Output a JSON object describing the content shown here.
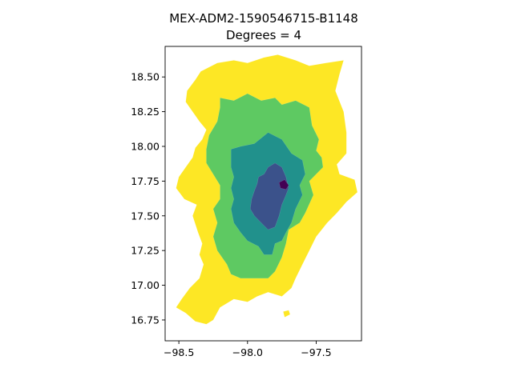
{
  "chart_data": {
    "type": "choropleth",
    "title_line1": "MEX-ADM2-1590546715-B1148",
    "title_line2": "Degrees = 4",
    "xlim": [
      -98.6,
      -97.17
    ],
    "ylim": [
      16.6,
      18.72
    ],
    "x_ticks": [
      {
        "value": -98.5,
        "label": "−98.5"
      },
      {
        "value": -98.0,
        "label": "−98.0"
      },
      {
        "value": -97.5,
        "label": "−97.5"
      }
    ],
    "y_ticks": [
      {
        "value": 16.75,
        "label": "16.75"
      },
      {
        "value": 17.0,
        "label": "17.00"
      },
      {
        "value": 17.25,
        "label": "17.25"
      },
      {
        "value": 17.5,
        "label": "17.50"
      },
      {
        "value": 17.75,
        "label": "17.75"
      },
      {
        "value": 18.0,
        "label": "18.00"
      },
      {
        "value": 18.25,
        "label": "18.25"
      },
      {
        "value": 18.5,
        "label": "18.50"
      }
    ],
    "degree_colors": {
      "0": "#440154",
      "1": "#3b528b",
      "2": "#21918c",
      "3": "#5ec962",
      "4": "#fde725"
    },
    "regions": [
      {
        "degree": 4,
        "poly": [
          [
            -98.3,
            18.56
          ],
          [
            -98.22,
            18.6
          ],
          [
            -98.1,
            18.62
          ],
          [
            -98.0,
            18.6
          ],
          [
            -97.88,
            18.64
          ],
          [
            -97.78,
            18.66
          ],
          [
            -97.65,
            18.62
          ],
          [
            -97.55,
            18.58
          ],
          [
            -97.43,
            18.6
          ],
          [
            -97.3,
            18.62
          ],
          [
            -97.33,
            18.52
          ],
          [
            -97.36,
            18.4
          ],
          [
            -97.3,
            18.25
          ],
          [
            -97.28,
            18.1
          ],
          [
            -97.28,
            17.95
          ],
          [
            -97.35,
            17.87
          ],
          [
            -97.33,
            17.8
          ],
          [
            -97.22,
            17.76
          ],
          [
            -97.2,
            17.67
          ],
          [
            -97.28,
            17.6
          ],
          [
            -97.35,
            17.52
          ],
          [
            -97.42,
            17.45
          ],
          [
            -97.5,
            17.35
          ],
          [
            -97.55,
            17.25
          ],
          [
            -97.6,
            17.15
          ],
          [
            -97.65,
            17.05
          ],
          [
            -97.68,
            16.98
          ],
          [
            -97.75,
            16.92
          ],
          [
            -97.85,
            16.95
          ],
          [
            -97.93,
            16.92
          ],
          [
            -98.0,
            16.88
          ],
          [
            -98.1,
            16.9
          ],
          [
            -98.2,
            16.84
          ],
          [
            -98.25,
            16.75
          ],
          [
            -98.3,
            16.72
          ],
          [
            -98.38,
            16.74
          ],
          [
            -98.45,
            16.8
          ],
          [
            -98.52,
            16.84
          ],
          [
            -98.48,
            16.9
          ],
          [
            -98.42,
            16.98
          ],
          [
            -98.35,
            17.05
          ],
          [
            -98.32,
            17.15
          ],
          [
            -98.35,
            17.22
          ],
          [
            -98.33,
            17.3
          ],
          [
            -98.36,
            17.38
          ],
          [
            -98.4,
            17.5
          ],
          [
            -98.37,
            17.58
          ],
          [
            -98.46,
            17.62
          ],
          [
            -98.52,
            17.7
          ],
          [
            -98.5,
            17.78
          ],
          [
            -98.45,
            17.85
          ],
          [
            -98.4,
            17.92
          ],
          [
            -98.38,
            17.99
          ],
          [
            -98.33,
            18.05
          ],
          [
            -98.3,
            18.12
          ],
          [
            -98.35,
            18.18
          ],
          [
            -98.4,
            18.25
          ],
          [
            -98.45,
            18.32
          ],
          [
            -98.44,
            18.4
          ],
          [
            -98.38,
            18.48
          ],
          [
            -98.34,
            18.54
          ]
        ]
      },
      {
        "degree": 4,
        "poly": [
          [
            -97.74,
            16.81
          ],
          [
            -97.7,
            16.82
          ],
          [
            -97.69,
            16.79
          ],
          [
            -97.73,
            16.77
          ]
        ]
      },
      {
        "degree": 3,
        "poly": [
          [
            -98.2,
            18.35
          ],
          [
            -98.1,
            18.33
          ],
          [
            -98.0,
            18.38
          ],
          [
            -97.9,
            18.33
          ],
          [
            -97.8,
            18.35
          ],
          [
            -97.75,
            18.3
          ],
          [
            -97.65,
            18.33
          ],
          [
            -97.55,
            18.28
          ],
          [
            -97.53,
            18.15
          ],
          [
            -97.48,
            18.05
          ],
          [
            -97.5,
            17.97
          ],
          [
            -97.46,
            17.92
          ],
          [
            -97.45,
            17.85
          ],
          [
            -97.55,
            17.75
          ],
          [
            -97.52,
            17.65
          ],
          [
            -97.58,
            17.52
          ],
          [
            -97.62,
            17.45
          ],
          [
            -97.7,
            17.4
          ],
          [
            -97.72,
            17.3
          ],
          [
            -97.75,
            17.2
          ],
          [
            -97.8,
            17.1
          ],
          [
            -97.85,
            17.05
          ],
          [
            -97.95,
            17.05
          ],
          [
            -98.05,
            17.05
          ],
          [
            -98.12,
            17.08
          ],
          [
            -98.15,
            17.15
          ],
          [
            -98.22,
            17.25
          ],
          [
            -98.25,
            17.35
          ],
          [
            -98.22,
            17.45
          ],
          [
            -98.25,
            17.55
          ],
          [
            -98.2,
            17.62
          ],
          [
            -98.2,
            17.72
          ],
          [
            -98.25,
            17.8
          ],
          [
            -98.3,
            17.88
          ],
          [
            -98.3,
            17.98
          ],
          [
            -98.28,
            18.08
          ],
          [
            -98.22,
            18.18
          ],
          [
            -98.2,
            18.28
          ]
        ]
      },
      {
        "degree": 2,
        "poly": [
          [
            -98.12,
            17.98
          ],
          [
            -98.05,
            18.0
          ],
          [
            -97.95,
            18.02
          ],
          [
            -97.85,
            18.1
          ],
          [
            -97.75,
            18.05
          ],
          [
            -97.68,
            17.95
          ],
          [
            -97.6,
            17.9
          ],
          [
            -97.58,
            17.8
          ],
          [
            -97.62,
            17.72
          ],
          [
            -97.6,
            17.65
          ],
          [
            -97.65,
            17.55
          ],
          [
            -97.68,
            17.45
          ],
          [
            -97.72,
            17.38
          ],
          [
            -97.75,
            17.32
          ],
          [
            -97.8,
            17.3
          ],
          [
            -97.82,
            17.22
          ],
          [
            -97.88,
            17.22
          ],
          [
            -97.92,
            17.28
          ],
          [
            -98.0,
            17.32
          ],
          [
            -98.05,
            17.38
          ],
          [
            -98.1,
            17.45
          ],
          [
            -98.12,
            17.55
          ],
          [
            -98.1,
            17.62
          ],
          [
            -98.12,
            17.7
          ],
          [
            -98.1,
            17.78
          ],
          [
            -98.12,
            17.85
          ]
        ]
      },
      {
        "degree": 1,
        "poly": [
          [
            -97.92,
            17.78
          ],
          [
            -97.88,
            17.8
          ],
          [
            -97.85,
            17.85
          ],
          [
            -97.8,
            17.88
          ],
          [
            -97.75,
            17.85
          ],
          [
            -97.72,
            17.78
          ],
          [
            -97.7,
            17.7
          ],
          [
            -97.72,
            17.65
          ],
          [
            -97.75,
            17.58
          ],
          [
            -97.77,
            17.5
          ],
          [
            -97.8,
            17.42
          ],
          [
            -97.85,
            17.4
          ],
          [
            -97.9,
            17.45
          ],
          [
            -97.95,
            17.5
          ],
          [
            -97.98,
            17.55
          ],
          [
            -97.97,
            17.62
          ],
          [
            -97.95,
            17.68
          ],
          [
            -97.93,
            17.73
          ]
        ]
      },
      {
        "degree": 0,
        "poly": [
          [
            -97.77,
            17.74
          ],
          [
            -97.73,
            17.76
          ],
          [
            -97.7,
            17.72
          ],
          [
            -97.72,
            17.69
          ],
          [
            -97.76,
            17.7
          ]
        ]
      }
    ]
  }
}
